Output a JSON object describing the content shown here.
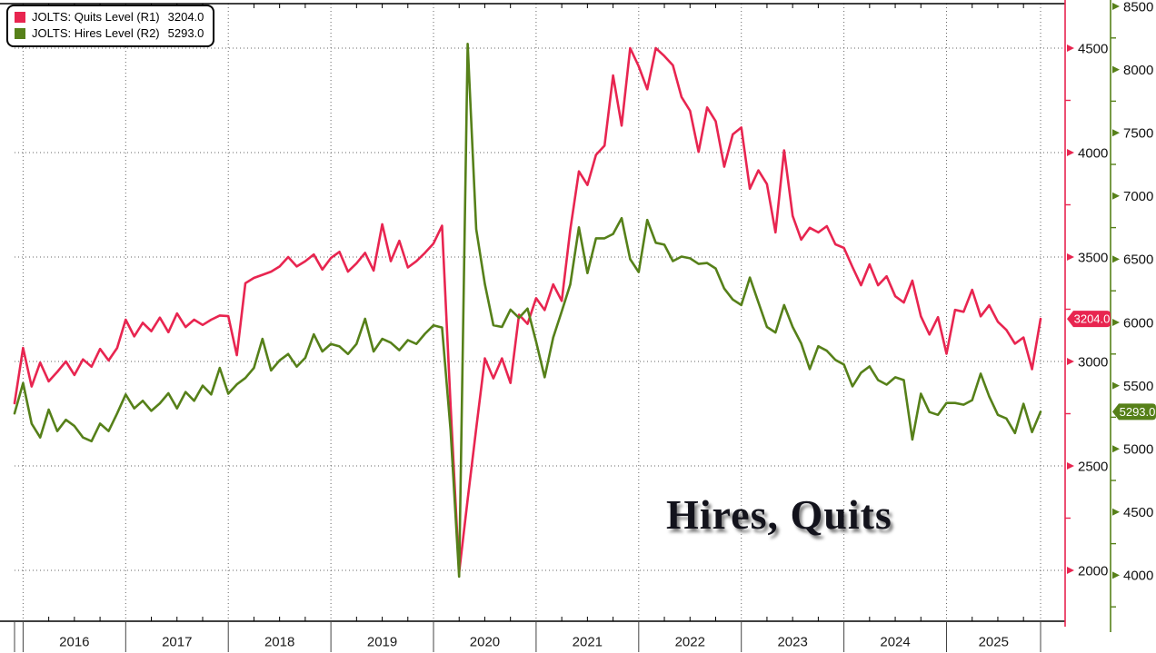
{
  "title_annotation": "Hires, Quits",
  "legend": {
    "items": [
      {
        "label": "JOLTS: Quits Level (R1)",
        "value": "3204.0",
        "color": "#e82550"
      },
      {
        "label": "JOLTS: Hires Level (R2)",
        "value": "5293.0",
        "color": "#568019"
      }
    ]
  },
  "chart_data": {
    "type": "line",
    "title": "Hires, Quits",
    "grid": "dotted",
    "legend_position": "top-left",
    "x_axis": {
      "unit": "month",
      "start": "2015-12",
      "end": "2025-12",
      "year_labels": [
        "2016",
        "2017",
        "2018",
        "2019",
        "2020",
        "2021",
        "2022",
        "2023",
        "2024",
        "2025"
      ]
    },
    "axis_r1": {
      "id": "R1",
      "side": "right-inner",
      "color": "#e82550",
      "tick_labels": [
        4500,
        4000,
        3500,
        3000,
        2500,
        2000
      ],
      "minor_ticks": [
        4250,
        3750,
        3250,
        2750,
        2250
      ],
      "last_value_tag": "3204.0"
    },
    "axis_r2": {
      "id": "R2",
      "side": "right-outer",
      "color": "#568019",
      "tick_labels": [
        8500,
        8000,
        7500,
        7000,
        6500,
        6000,
        5500,
        5000,
        4500,
        4000
      ],
      "minor_ticks": [
        8250,
        7750,
        7250,
        6750,
        6250,
        5750,
        5250,
        4750,
        4250,
        3750
      ],
      "last_value_tag": "5293.0"
    },
    "series": [
      {
        "name": "JOLTS: Quits Level (R1)",
        "axis": "R1",
        "color": "#e82550",
        "last_value": 3204.0,
        "values": [
          2800,
          3065,
          2880,
          2995,
          2905,
          2950,
          3000,
          2935,
          3010,
          2975,
          3060,
          3005,
          3065,
          3200,
          3120,
          3185,
          3145,
          3210,
          3140,
          3230,
          3165,
          3200,
          3175,
          3200,
          3220,
          3217,
          3030,
          3375,
          3400,
          3415,
          3430,
          3455,
          3500,
          3455,
          3480,
          3512,
          3440,
          3495,
          3525,
          3430,
          3470,
          3520,
          3435,
          3657,
          3480,
          3578,
          3450,
          3480,
          3520,
          3565,
          3650,
          2790,
          1990,
          2340,
          2679,
          3015,
          2919,
          3015,
          2897,
          3224,
          3180,
          3303,
          3246,
          3369,
          3290,
          3631,
          3910,
          3845,
          3989,
          4033,
          4369,
          4129,
          4500,
          4413,
          4303,
          4500,
          4462,
          4418,
          4266,
          4200,
          4003,
          4216,
          4150,
          3932,
          4087,
          4120,
          3827,
          3915,
          3849,
          3618,
          4011,
          3697,
          3583,
          3640,
          3618,
          3648,
          3561,
          3544,
          3452,
          3365,
          3465,
          3365,
          3408,
          3312,
          3282,
          3387,
          3216,
          3129,
          3212,
          3037,
          3247,
          3238,
          3343,
          3216,
          3269,
          3190,
          3151,
          3085,
          3115,
          2963,
          3204
        ]
      },
      {
        "name": "JOLTS: Hires Level (R2)",
        "axis": "R2",
        "color": "#568019",
        "last_value": 5293.0,
        "values": [
          5280,
          5520,
          5200,
          5090,
          5310,
          5140,
          5230,
          5180,
          5090,
          5060,
          5200,
          5140,
          5280,
          5430,
          5320,
          5380,
          5300,
          5360,
          5440,
          5320,
          5450,
          5380,
          5500,
          5430,
          5640,
          5436,
          5510,
          5560,
          5640,
          5870,
          5620,
          5700,
          5750,
          5650,
          5720,
          5906,
          5770,
          5830,
          5810,
          5750,
          5830,
          6029,
          5770,
          5870,
          5840,
          5780,
          5860,
          5830,
          5910,
          5977,
          5960,
          5146,
          3989,
          8203,
          6738,
          6304,
          5978,
          5964,
          6101,
          6036,
          6109,
          5848,
          5566,
          5880,
          6087,
          6300,
          6752,
          6390,
          6665,
          6665,
          6700,
          6825,
          6500,
          6398,
          6810,
          6630,
          6615,
          6485,
          6521,
          6507,
          6463,
          6470,
          6427,
          6268,
          6181,
          6137,
          6355,
          6159,
          5964,
          5920,
          6137,
          5964,
          5834,
          5631,
          5812,
          5776,
          5703,
          5667,
          5494,
          5602,
          5652,
          5544,
          5508,
          5566,
          5544,
          5073,
          5436,
          5291,
          5269,
          5363,
          5363,
          5349,
          5385,
          5595,
          5414,
          5269,
          5240,
          5124,
          5356,
          5132,
          5293
        ]
      }
    ]
  }
}
